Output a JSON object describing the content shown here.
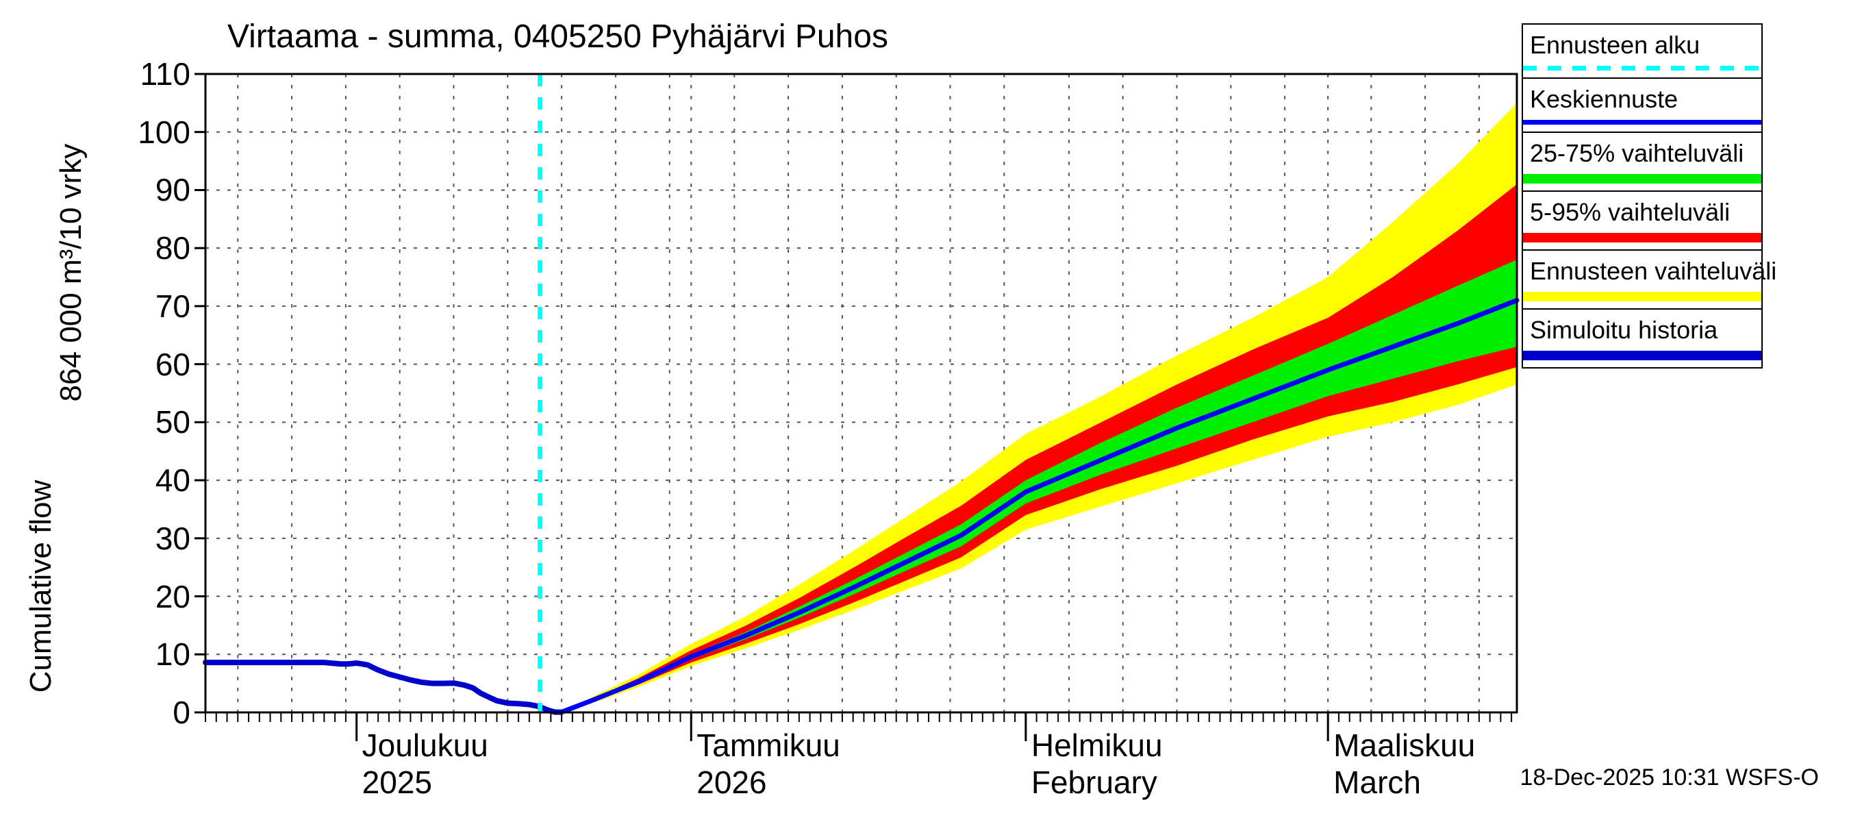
{
  "title": "Virtaama - summa, 0405250 Pyhäjärvi Puhos",
  "y_axis": {
    "unit_label": "864 000 m³/10 vrky",
    "name_label": "Cumulative flow"
  },
  "footer": {
    "timestamp": "18-Dec-2025 10:31 WSFS-O"
  },
  "legend": {
    "items": [
      {
        "label": "Ennusteen alku",
        "color": "#00ffff",
        "style": "dashed"
      },
      {
        "label": "Keskiennuste",
        "color": "#0000ff",
        "style": "thin"
      },
      {
        "label": "25-75% vaihteluväli",
        "color": "#00ee00",
        "style": "thick"
      },
      {
        "label": "5-95% vaihteluväli",
        "color": "#ff0000",
        "style": "thick"
      },
      {
        "label": "Ennusteen vaihteluväli",
        "color": "#ffff00",
        "style": "thick"
      },
      {
        "label": "Simuloitu historia",
        "color": "#0000cc",
        "style": "thick"
      }
    ]
  },
  "chart_data": {
    "type": "line",
    "title": "Virtaama - summa, 0405250 Pyhäjärvi Puhos",
    "ylabel": "Cumulative flow",
    "y_unit": "864 000 m³/10 vrky",
    "ylim": [
      0,
      110
    ],
    "y_ticks": [
      0,
      10,
      20,
      30,
      40,
      50,
      60,
      70,
      80,
      90,
      100,
      110
    ],
    "x_total_days": 121.5,
    "forecast_start_day": 31,
    "forecast_start_date": "18-Dec-2025",
    "legend_position": "top-right outside",
    "grid": "dashed",
    "months": [
      {
        "label": "Joulukuu",
        "sublabel": "2025",
        "start_day": 14
      },
      {
        "label": "Tammikuu",
        "sublabel": "2026",
        "start_day": 45
      },
      {
        "label": "Helmikuu",
        "sublabel": "February",
        "start_day": 76
      },
      {
        "label": "Maaliskuu",
        "sublabel": "March",
        "start_day": 104
      }
    ],
    "grid_days": [
      3,
      8,
      13,
      18,
      23,
      28,
      33,
      38,
      43,
      45,
      49,
      54,
      59,
      64,
      69,
      74,
      80,
      85,
      90,
      95,
      100,
      104,
      108,
      113,
      118
    ],
    "history": {
      "name": "Simuloitu historia",
      "days": [
        0,
        6,
        11,
        12.5,
        13.2,
        14,
        15,
        16,
        17,
        18,
        19,
        20,
        21,
        22,
        23,
        24,
        24.8,
        25.5,
        26.3,
        27,
        28,
        29,
        30,
        30.7,
        31.2,
        31.8,
        32.4,
        33
      ],
      "values": [
        8.6,
        8.6,
        8.6,
        8.35,
        8.35,
        8.5,
        8.2,
        7.3,
        6.6,
        6.1,
        5.6,
        5.2,
        5.0,
        5.0,
        5.05,
        4.7,
        4.2,
        3.3,
        2.6,
        2.0,
        1.6,
        1.5,
        1.35,
        1.1,
        0.8,
        0.35,
        0.05,
        0.05
      ]
    },
    "forecast": {
      "days": [
        33,
        36,
        40,
        45,
        50,
        55,
        60,
        65,
        70,
        76,
        83,
        90,
        97,
        104,
        110,
        116,
        121.5
      ],
      "median": [
        0.05,
        2.2,
        5.2,
        9.6,
        13.2,
        17.2,
        21.5,
        26,
        30.5,
        38,
        43.5,
        49,
        54,
        59,
        63,
        67,
        71
      ],
      "p25": [
        0.05,
        2.1,
        5.0,
        9.2,
        12.6,
        16.3,
        20.3,
        24.5,
        28.6,
        36,
        41,
        45.5,
        50,
        54.5,
        57.5,
        60.5,
        63
      ],
      "p75": [
        0.05,
        2.3,
        5.4,
        10.0,
        13.8,
        18.2,
        22.8,
        27.6,
        32.4,
        40,
        46.5,
        52.5,
        58,
        63.5,
        68.5,
        73.5,
        78
      ],
      "p5": [
        0.05,
        1.9,
        4.7,
        8.6,
        11.8,
        15.2,
        18.9,
        22.8,
        26.7,
        34,
        38.5,
        42.5,
        47,
        51,
        53.5,
        56.5,
        59.5
      ],
      "p95": [
        0.05,
        2.5,
        5.8,
        10.7,
        14.9,
        19.7,
        24.9,
        30.3,
        35.6,
        43.5,
        50,
        56.5,
        62.5,
        68,
        75,
        83,
        91
      ],
      "min": [
        0.05,
        1.7,
        4.3,
        8.0,
        11.0,
        14.2,
        17.6,
        21.2,
        24.8,
        31.5,
        35.5,
        39.5,
        43.5,
        47.5,
        50,
        53,
        56.5
      ],
      "max": [
        0.05,
        2.8,
        6.4,
        11.8,
        16.5,
        22,
        27.8,
        33.8,
        39.8,
        48,
        54.5,
        61.5,
        68,
        75,
        84.5,
        94.5,
        105
      ]
    },
    "colors": {
      "forecast_start_line": "#00ffff",
      "median": "#0000ff",
      "band_25_75": "#00ee00",
      "band_5_95": "#ff0000",
      "band_minmax": "#ffff00",
      "history": "#0000cc",
      "grid": "#555555",
      "axis": "#000000"
    }
  }
}
